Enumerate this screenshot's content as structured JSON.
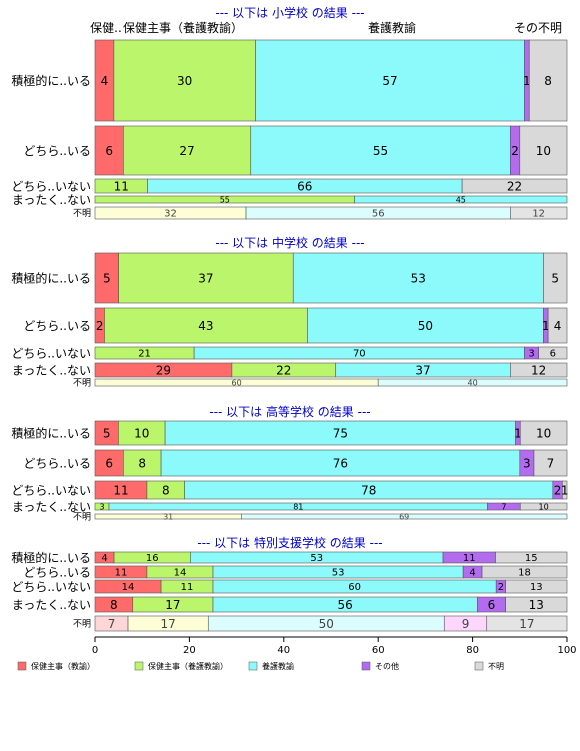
{
  "chart_data": {
    "type": "bar",
    "orientation": "horizontal",
    "stacked": "percent",
    "xlim": [
      0,
      100
    ],
    "x_ticks": [
      "0",
      "20",
      "40",
      "60",
      "80",
      "100"
    ],
    "grid": false,
    "legend_position": "bottom",
    "column_headers": {
      "labels": [
        "保健..",
        "保健主事（養護教諭）",
        "養護教諭",
        "その不明"
      ],
      "note": "top header row labels over the first panel"
    },
    "legend": [
      {
        "label": "保健主事（教諭）",
        "color": "#ff6b6b"
      },
      {
        "label": "保健主事（養護教諭）",
        "color": "#bbf56b"
      },
      {
        "label": "養護教諭",
        "color": "#8cf9fb"
      },
      {
        "label": "その他",
        "color": "#b36bf0"
      },
      {
        "label": "不明",
        "color": "#d9d9d9"
      }
    ],
    "panels": [
      {
        "title": "--- 以下は 小学校 の結果 ---",
        "rows": [
          {
            "label": "積極的に..いる",
            "values": [
              4,
              30,
              57,
              1,
              8
            ]
          },
          {
            "label": "どちら..いる",
            "values": [
              6,
              27,
              55,
              2,
              10
            ]
          },
          {
            "label": "どちら..いない",
            "values": [
              0,
              11,
              66,
              0,
              22
            ]
          },
          {
            "label": "まったく..ない",
            "values": [
              0,
              55,
              45,
              0,
              0
            ]
          },
          {
            "label": "不明",
            "values": [
              0,
              32,
              56,
              0,
              12
            ],
            "pale": true
          }
        ]
      },
      {
        "title": "--- 以下は 中学校 の結果 ---",
        "rows": [
          {
            "label": "積極的に..いる",
            "values": [
              5,
              37,
              53,
              0,
              5
            ]
          },
          {
            "label": "どちら..いる",
            "values": [
              2,
              43,
              50,
              1,
              4
            ]
          },
          {
            "label": "どちら..いない",
            "values": [
              0,
              21,
              70,
              3,
              6
            ]
          },
          {
            "label": "まったく..ない",
            "values": [
              29,
              22,
              37,
              0,
              12
            ]
          },
          {
            "label": "不明",
            "values": [
              0,
              60,
              40,
              0,
              0
            ],
            "pale": true
          }
        ]
      },
      {
        "title": "--- 以下は 高等学校 の結果 ---",
        "rows": [
          {
            "label": "積極的に..いる",
            "values": [
              5,
              10,
              75,
              1,
              10
            ]
          },
          {
            "label": "どちら..いる",
            "values": [
              6,
              8,
              76,
              3,
              7
            ]
          },
          {
            "label": "どちら..いない",
            "values": [
              11,
              8,
              78,
              2,
              1
            ]
          },
          {
            "label": "まったく..ない",
            "values": [
              0,
              3,
              81,
              7,
              10
            ]
          },
          {
            "label": "不明",
            "values": [
              0,
              31,
              69,
              0,
              0
            ],
            "pale": true
          }
        ]
      },
      {
        "title": "--- 以下は 特別支援学校 の結果 ---",
        "rows": [
          {
            "label": "積極的に..いる",
            "values": [
              4,
              16,
              53,
              11,
              15
            ]
          },
          {
            "label": "どちら..いる",
            "values": [
              11,
              14,
              53,
              4,
              18
            ]
          },
          {
            "label": "どちら..いない",
            "values": [
              14,
              11,
              60,
              2,
              13
            ]
          },
          {
            "label": "まったく..ない",
            "values": [
              8,
              17,
              56,
              6,
              13
            ]
          },
          {
            "label": "不明",
            "values": [
              7,
              17,
              50,
              9,
              17
            ],
            "pale": true
          }
        ]
      }
    ]
  },
  "colors": {
    "title": "#0000cc",
    "segments": [
      "#ff6b6b",
      "#bbf56b",
      "#8cf9fb",
      "#b36bf0",
      "#d9d9d9"
    ],
    "segments_pale": [
      "#fdd7d7",
      "#fdfdd6",
      "#dcfdfd",
      "#fcd6fc",
      "#e4e4e4"
    ]
  }
}
